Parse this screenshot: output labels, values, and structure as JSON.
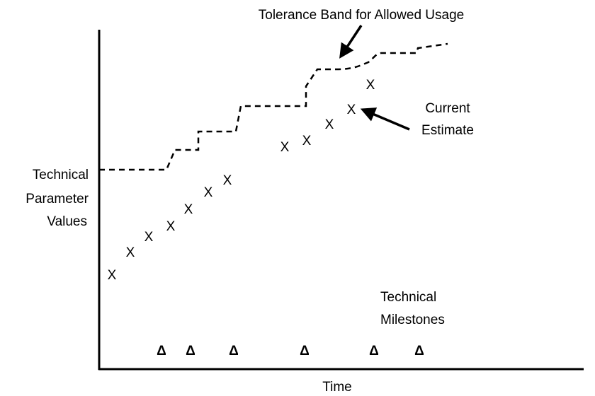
{
  "diagram": {
    "band_label": "Tolerance Band for Allowed Usage",
    "estimate_label": [
      "Current",
      "Estimate"
    ],
    "y_axis_label": [
      "Technical",
      "Parameter",
      "Values"
    ],
    "milestones_label": [
      "Technical",
      "Milestones"
    ],
    "x_axis_label": "Time",
    "estimates": [
      "X",
      "X",
      "X",
      "X",
      "X",
      "X",
      "X",
      "X",
      "X",
      "X",
      "X",
      "X"
    ],
    "milestones": [
      "Δ",
      "Δ",
      "Δ",
      "Δ",
      "Δ",
      "Δ"
    ]
  }
}
